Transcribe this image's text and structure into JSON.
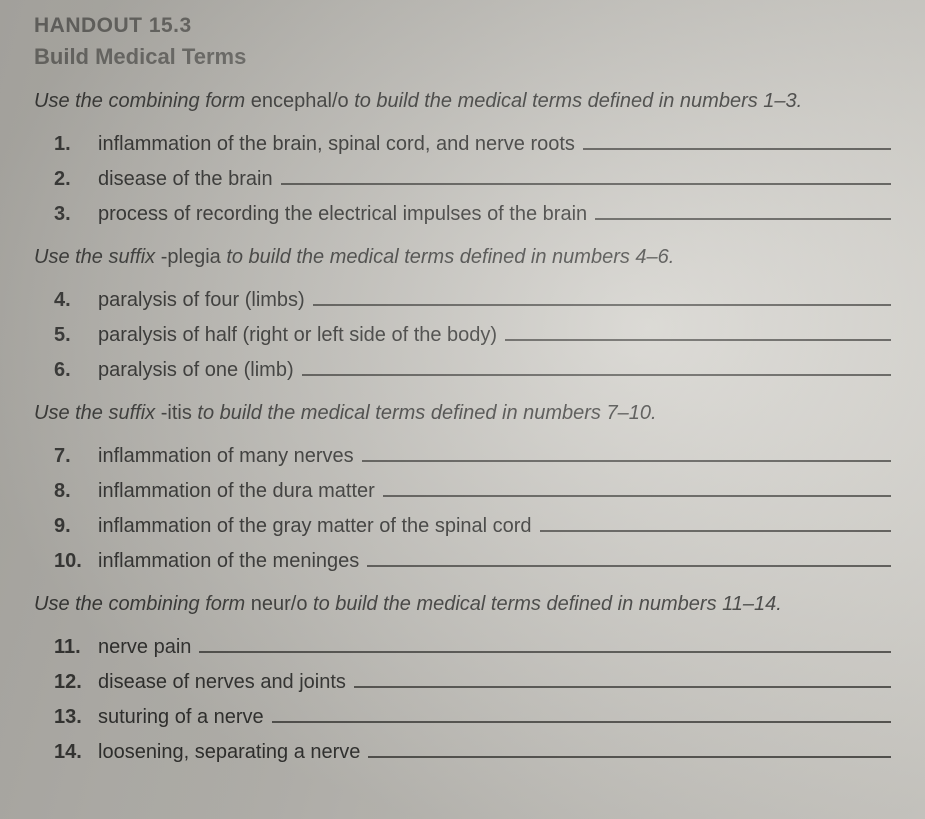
{
  "handout_number": "HANDOUT 15.3",
  "title": "Build Medical Terms",
  "sections": [
    {
      "intro_prefix": "Use the combining form ",
      "intro_term": "encephal/o",
      "intro_suffix": " to build the medical terms defined in numbers 1–3.",
      "items": [
        {
          "n": "1.",
          "def": "inflammation of the brain, spinal cord, and nerve roots"
        },
        {
          "n": "2.",
          "def": "disease of the brain"
        },
        {
          "n": "3.",
          "def": "process of recording the electrical impulses of the brain"
        }
      ]
    },
    {
      "intro_prefix": "Use the suffix ",
      "intro_term": "-plegia",
      "intro_suffix": " to build the medical terms defined in numbers 4–6.",
      "items": [
        {
          "n": "4.",
          "def": "paralysis of four (limbs)"
        },
        {
          "n": "5.",
          "def": "paralysis of half (right or left side of the body)"
        },
        {
          "n": "6.",
          "def": "paralysis of one (limb)"
        }
      ]
    },
    {
      "intro_prefix": "Use the suffix ",
      "intro_term": "-itis",
      "intro_suffix": " to build the medical terms defined in numbers 7–10.",
      "items": [
        {
          "n": "7.",
          "def": "inflammation of many nerves"
        },
        {
          "n": "8.",
          "def": "inflammation of the dura matter"
        },
        {
          "n": "9.",
          "def": "inflammation of the gray matter of the spinal cord"
        },
        {
          "n": "10.",
          "def": "inflammation of the meninges"
        }
      ]
    },
    {
      "intro_prefix": "Use the combining form ",
      "intro_term": "neur/o",
      "intro_suffix": " to build the medical terms defined in numbers 11–14.",
      "items": [
        {
          "n": "11.",
          "def": "nerve pain"
        },
        {
          "n": "12.",
          "def": "disease of nerves and joints"
        },
        {
          "n": "13.",
          "def": "suturing of a nerve"
        },
        {
          "n": "14.",
          "def": "loosening, separating a nerve"
        }
      ]
    }
  ]
}
